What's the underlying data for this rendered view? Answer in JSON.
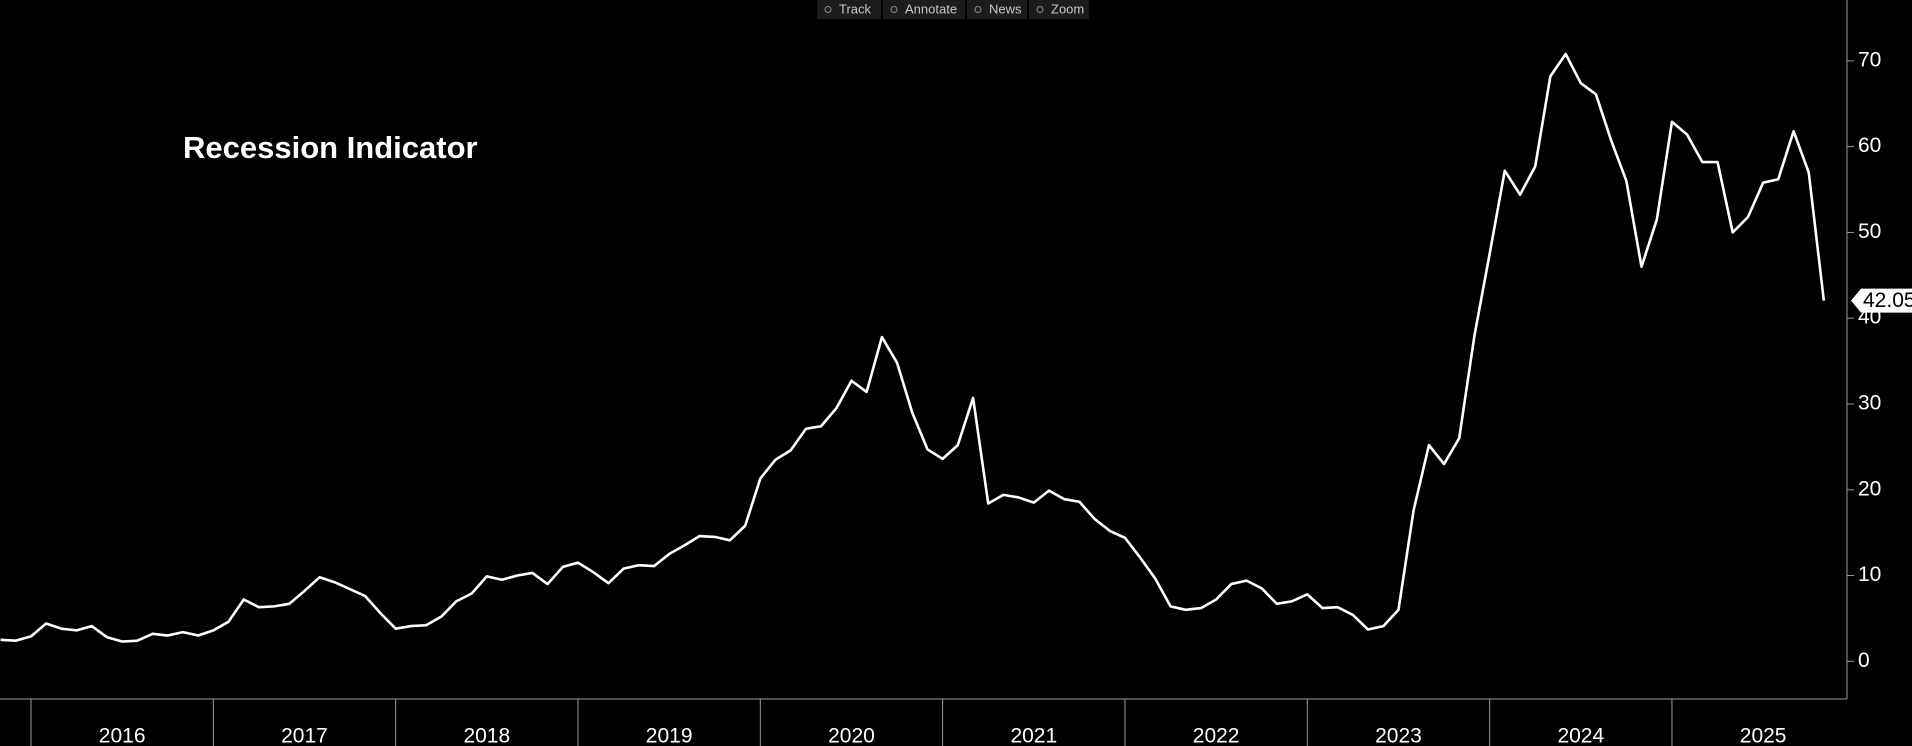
{
  "toolbar": [
    "Track",
    "Annotate",
    "News",
    "Zoom"
  ],
  "chart_data": {
    "type": "line",
    "title": "Recession Indicator",
    "x": [
      2015.833,
      2015.917,
      2016,
      2016.083,
      2016.167,
      2016.25,
      2016.333,
      2016.417,
      2016.5,
      2016.583,
      2016.667,
      2016.75,
      2016.833,
      2016.917,
      2017,
      2017.083,
      2017.167,
      2017.25,
      2017.333,
      2017.417,
      2017.5,
      2017.583,
      2017.667,
      2017.75,
      2017.833,
      2017.917,
      2018,
      2018.083,
      2018.167,
      2018.25,
      2018.333,
      2018.417,
      2018.5,
      2018.583,
      2018.667,
      2018.75,
      2018.833,
      2018.917,
      2019,
      2019.083,
      2019.167,
      2019.25,
      2019.333,
      2019.417,
      2019.5,
      2019.583,
      2019.667,
      2019.75,
      2019.833,
      2019.917,
      2020,
      2020.083,
      2020.167,
      2020.25,
      2020.333,
      2020.417,
      2020.5,
      2020.583,
      2020.667,
      2020.75,
      2020.833,
      2020.917,
      2021,
      2021.083,
      2021.167,
      2021.25,
      2021.333,
      2021.417,
      2021.5,
      2021.583,
      2021.667,
      2021.75,
      2021.833,
      2021.917,
      2022,
      2022.083,
      2022.167,
      2022.25,
      2022.333,
      2022.417,
      2022.5,
      2022.583,
      2022.667,
      2022.75,
      2022.833,
      2022.917,
      2023,
      2023.083,
      2023.167,
      2023.25,
      2023.333,
      2023.417,
      2023.5,
      2023.583,
      2023.667,
      2023.75,
      2023.833,
      2023.917,
      2024,
      2024.083,
      2024.167,
      2024.25,
      2024.333,
      2024.417,
      2024.5,
      2024.583,
      2024.667,
      2024.75,
      2024.833,
      2024.917,
      2025,
      2025.083,
      2025.167,
      2025.25,
      2025.333,
      2025.417,
      2025.5,
      2025.583,
      2025.667,
      2025.75,
      2025.833
    ],
    "series": [
      {
        "color": "#ffffff",
        "values": [
          2.5,
          2.4,
          2.9,
          4.4,
          3.8,
          3.6,
          4.1,
          2.8,
          2.3,
          2.4,
          3.2,
          3.0,
          3.4,
          3.0,
          3.6,
          4.6,
          7.2,
          6.3,
          6.4,
          6.7,
          8.2,
          9.8,
          9.2,
          8.4,
          7.6,
          5.6,
          3.8,
          4.1,
          4.2,
          5.2,
          7.0,
          7.9,
          9.9,
          9.5,
          10.0,
          10.3,
          9.0,
          11.0,
          11.5,
          10.4,
          9.1,
          10.8,
          11.2,
          11.1,
          12.5,
          13.5,
          14.6,
          14.5,
          14.1,
          15.8,
          21.3,
          23.5,
          24.6,
          27.1,
          27.4,
          29.5,
          32.7,
          31.4,
          37.8,
          34.8,
          29.0,
          24.7,
          23.6,
          25.2,
          30.7,
          18.4,
          19.4,
          19.1,
          18.5,
          19.9,
          18.9,
          18.6,
          16.6,
          15.2,
          14.4,
          12.1,
          9.6,
          6.4,
          6.0,
          6.2,
          7.2,
          9.0,
          9.4,
          8.5,
          6.7,
          7.0,
          7.8,
          6.2,
          6.3,
          5.4,
          3.7,
          4.1,
          6.0,
          17.6,
          25.2,
          23.0,
          26.0,
          38.0,
          47.5,
          57.2,
          54.4,
          57.7,
          68.2,
          70.8,
          67.4,
          66.1,
          60.7,
          56.0,
          46.0,
          51.5,
          62.9,
          61.4,
          58.2,
          58.2,
          50.0,
          51.8,
          55.8,
          56.2,
          61.8,
          57.0,
          42.05
        ]
      }
    ],
    "xlim": [
      2015.83,
      2025.96
    ],
    "xticks": [
      2016,
      2017,
      2018,
      2019,
      2020,
      2021,
      2022,
      2023,
      2024,
      2025
    ],
    "ylim": [
      -4.4,
      77.1
    ],
    "yticks": [
      0,
      10,
      20,
      30,
      40,
      50,
      60,
      70
    ],
    "grid": false
  }
}
